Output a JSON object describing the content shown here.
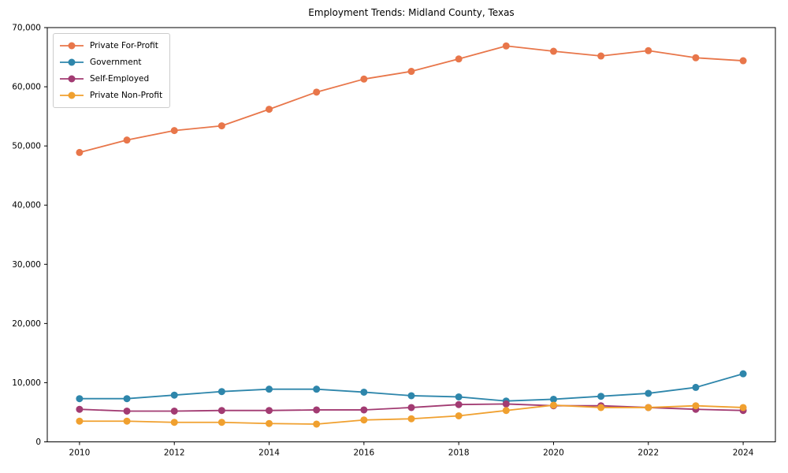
{
  "title": "Employment Trends: Midland County, Texas",
  "chart_data": {
    "type": "line",
    "title": "Employment Trends: Midland County, Texas",
    "xlabel": "",
    "ylabel": "",
    "x": [
      2010,
      2011,
      2012,
      2013,
      2014,
      2015,
      2016,
      2017,
      2018,
      2019,
      2020,
      2021,
      2022,
      2023,
      2024
    ],
    "series": [
      {
        "name": "Private For-Profit",
        "color": "#e8764a",
        "values": [
          48900,
          51000,
          52600,
          53400,
          56200,
          59100,
          61300,
          62600,
          64700,
          66900,
          66000,
          65200,
          66100,
          64900,
          64400
        ]
      },
      {
        "name": "Government",
        "color": "#2e86ab",
        "values": [
          7300,
          7300,
          7900,
          8500,
          8900,
          8900,
          8400,
          7800,
          7600,
          6900,
          7200,
          7700,
          8200,
          9200,
          11500
        ]
      },
      {
        "name": "Self-Employed",
        "color": "#a23b72",
        "values": [
          5500,
          5200,
          5200,
          5300,
          5300,
          5400,
          5400,
          5800,
          6300,
          6400,
          6100,
          6100,
          5800,
          5500,
          5300
        ]
      },
      {
        "name": "Private Non-Profit",
        "color": "#f0a02f",
        "values": [
          3500,
          3500,
          3300,
          3300,
          3100,
          3000,
          3700,
          3900,
          4400,
          5300,
          6200,
          5800,
          5800,
          6100,
          5800
        ]
      }
    ],
    "xticks": [
      2010,
      2012,
      2014,
      2016,
      2018,
      2020,
      2022,
      2024
    ],
    "yticks": [
      0,
      10000,
      20000,
      30000,
      40000,
      50000,
      60000,
      70000
    ],
    "ytick_labels": [
      "0",
      "10,000",
      "20,000",
      "30,000",
      "40,000",
      "50,000",
      "60,000",
      "70,000"
    ],
    "xlim": [
      2009.32,
      2024.68
    ],
    "ylim": [
      0,
      70000
    ],
    "grid": false,
    "legend_position": "upper left",
    "marker": "circle",
    "axis_color": "#000000"
  }
}
